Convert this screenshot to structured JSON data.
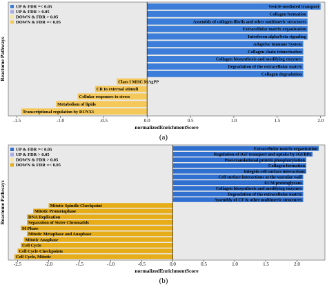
{
  "chart_data": [
    {
      "type": "bar",
      "orientation": "horizontal",
      "panel_label": "(a)",
      "xlabel": "normalizedEnrichmentScore",
      "ylabel": "Reactome Pathways",
      "xlim": [
        -1.6,
        2.05
      ],
      "xticks": [
        -1.5,
        -1.0,
        -0.5,
        0.0,
        0.5,
        1.0,
        1.5,
        2.0
      ],
      "xtick_labels": [
        "-1.5",
        "-1.0",
        "-0.5",
        "0.0",
        "0.5",
        "1.0",
        "1.5",
        "2.0"
      ],
      "grid": false,
      "background": "#e9e9e9",
      "legend_placement": "top-left",
      "legend": [
        {
          "label": "UP & FDR =< 0.05",
          "color": "#3b7dd8"
        },
        {
          "label": "UP & FDR > 0.05",
          "color": "#a9a9e6"
        },
        {
          "label": "DOWN & FDR > 0.05",
          "color": "#f5e6a0"
        },
        {
          "label": "DOWN & FDR =< 0.05",
          "color": "#f5c85a"
        }
      ],
      "categories": [
        "Vesicle-mediated transport",
        "Collagen formation",
        "Assembly of collagen fibrils and other multimeric structures",
        "Extracellular matrix organization",
        "Interferon alpha/beta signaling",
        "Adaptive Immune System",
        "Collagen chain trimerization",
        "Collagen biosynthesis and modifying enzymes",
        "Degradation of the extracellular matrix",
        "Collagen degradation",
        "Class I MHC MAgPP",
        "CR to external stimuli",
        "Cellular responses to stress",
        "Metabolism of lipids",
        "Transcriptional regulation by RUNX1"
      ],
      "values": [
        2.0,
        1.85,
        1.85,
        1.85,
        1.85,
        1.8,
        1.8,
        1.8,
        1.8,
        1.8,
        -0.35,
        -0.6,
        -0.8,
        -1.05,
        -1.45
      ],
      "groups": [
        "UP & FDR =< 0.05",
        "UP & FDR =< 0.05",
        "UP & FDR =< 0.05",
        "UP & FDR =< 0.05",
        "UP & FDR =< 0.05",
        "UP & FDR =< 0.05",
        "UP & FDR =< 0.05",
        "UP & FDR =< 0.05",
        "UP & FDR =< 0.05",
        "UP & FDR =< 0.05",
        "DOWN & FDR =< 0.05",
        "DOWN & FDR =< 0.05",
        "DOWN & FDR =< 0.05",
        "DOWN & FDR =< 0.05",
        "DOWN & FDR =< 0.05"
      ]
    },
    {
      "type": "bar",
      "orientation": "horizontal",
      "panel_label": "(b)",
      "xlabel": "normalizedEnrichmentScore",
      "ylabel": "Reactome Pathways",
      "xlim": [
        -2.65,
        2.45
      ],
      "xticks": [
        -2.5,
        -2.0,
        -1.5,
        -1.0,
        -0.5,
        0.0,
        0.5,
        1.0,
        1.5,
        2.0
      ],
      "xtick_labels": [
        "-2.5",
        "-2.0",
        "-1.5",
        "-1.0",
        "-0.5",
        "0.0",
        "0.5",
        "1.0",
        "1.5",
        "2.0"
      ],
      "grid": false,
      "background": "#e9e9e9",
      "legend_placement": "top-left",
      "legend": [
        {
          "label": "UP & FDR =< 0.05",
          "color": "#2f6fcf"
        },
        {
          "label": "UP & FDR > 0.05",
          "color": "#a9a9e6"
        },
        {
          "label": "DOWN & FDR > 0.05",
          "color": "#f5e6a0"
        },
        {
          "label": "DOWN & FDR =< 0.05",
          "color": "#e6ad18"
        }
      ],
      "categories": [
        "Extracellular matrix organization",
        "Regulation of IGF transport and uptake by IGFBPs",
        "Post-translational protein phosphorylation",
        "Collagen formation",
        "Integrin cell surface interactions",
        "Cell surface interactions at the vascular wall",
        "ECM proteoglycans",
        "Collagen biosynthesis and modifying enzymes",
        "Degradation of the extracellular matrix",
        "Assembly of CF & other multimeric structures",
        "Mitotic Spindle Checkpoint",
        "Mitotic Prometaphase",
        "DNA Replication",
        "Separation of Sister Chromatids",
        "M Phase",
        "Mitotic Metaphase and Anaphase",
        "Mitotic Anaphase",
        "Cell Cycle",
        "Cell Cycle Checkpoints",
        "Cell Cycle, Mitotic"
      ],
      "values": [
        2.35,
        2.25,
        2.15,
        2.15,
        2.15,
        2.1,
        2.1,
        2.1,
        2.1,
        2.1,
        -2.0,
        -2.25,
        -2.35,
        -2.35,
        -2.45,
        -2.35,
        -2.4,
        -2.45,
        -2.5,
        -2.55
      ],
      "groups": [
        "UP & FDR =< 0.05",
        "UP & FDR =< 0.05",
        "UP & FDR =< 0.05",
        "UP & FDR =< 0.05",
        "UP & FDR =< 0.05",
        "UP & FDR =< 0.05",
        "UP & FDR =< 0.05",
        "UP & FDR =< 0.05",
        "UP & FDR =< 0.05",
        "UP & FDR =< 0.05",
        "DOWN & FDR =< 0.05",
        "DOWN & FDR =< 0.05",
        "DOWN & FDR =< 0.05",
        "DOWN & FDR =< 0.05",
        "DOWN & FDR =< 0.05",
        "DOWN & FDR =< 0.05",
        "DOWN & FDR =< 0.05",
        "DOWN & FDR =< 0.05",
        "DOWN & FDR =< 0.05",
        "DOWN & FDR =< 0.05"
      ]
    }
  ]
}
